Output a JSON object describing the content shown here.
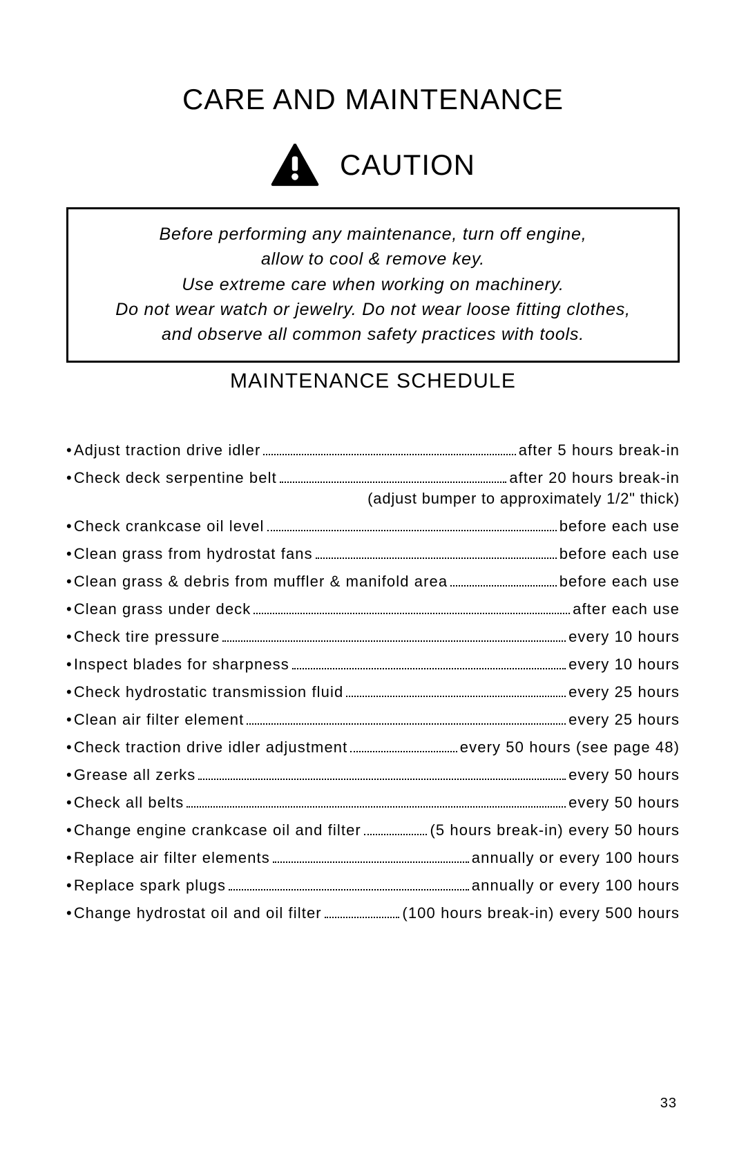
{
  "title": "CARE AND MAINTENANCE",
  "caution_label": "CAUTION",
  "caution_box": {
    "line1": "Before performing any maintenance, turn off engine,",
    "line2": "allow to cool & remove key.",
    "line3": "Use extreme care when working on machinery.",
    "line4": "Do not wear watch or jewelry. Do not wear loose fitting clothes,",
    "line5": "and observe all common safety practices with tools."
  },
  "subhead": "MAINTENANCE SCHEDULE",
  "schedule": [
    {
      "task": "Adjust traction drive idler",
      "interval": "after 5 hours break-in"
    },
    {
      "task": "Check deck serpentine belt",
      "interval": "after 20 hours break-in",
      "subnote": "(adjust bumper to approximately 1/2\" thick)"
    },
    {
      "task": "Check crankcase oil level",
      "interval": "before each use"
    },
    {
      "task": "Clean grass from hydrostat fans",
      "interval": "before each use"
    },
    {
      "task": "Clean grass & debris from muffler & manifold area",
      "interval": "before each use"
    },
    {
      "task": "Clean grass under deck",
      "interval": "after each use"
    },
    {
      "task": "Check tire pressure",
      "interval": "every 10 hours"
    },
    {
      "task": "Inspect blades for sharpness",
      "interval": "every 10 hours"
    },
    {
      "task": "Check hydrostatic transmission fluid",
      "interval": "every 25 hours"
    },
    {
      "task": "Clean air filter element",
      "interval": "every 25 hours"
    },
    {
      "task": "Check traction drive idler adjustment",
      "interval": "every 50 hours (see page 48)"
    },
    {
      "task": "Grease all zerks",
      "interval": "every 50 hours"
    },
    {
      "task": "Check all belts",
      "interval": "every 50 hours"
    },
    {
      "task": "Change engine crankcase oil and filter",
      "interval": "(5 hours break-in) every 50 hours"
    },
    {
      "task": "Replace air filter elements",
      "interval": "annually or every 100 hours"
    },
    {
      "task": "Replace spark plugs",
      "interval": "annually or every 100 hours"
    },
    {
      "task": "Change hydrostat oil and oil filter",
      "interval": "(100 hours break-in) every 500 hours"
    }
  ],
  "page_number": "33",
  "colors": {
    "text": "#000000",
    "background": "#ffffff",
    "border": "#000000"
  }
}
